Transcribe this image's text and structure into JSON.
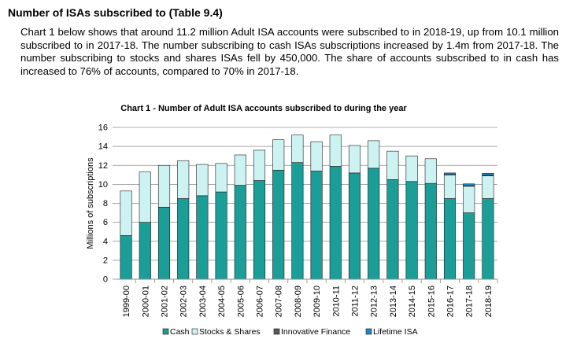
{
  "section": {
    "heading": "Number of ISAs subscribed to (Table 9.4)",
    "paragraph": "Chart 1 below shows that around 11.2 million Adult ISA accounts were subscribed to in 2018-19, up from 10.1 million subscribed to in 2017-18. The number subscribing to cash ISAs subscriptions increased by 1.4m from 2017-18. The number subscribing to stocks and shares ISAs fell by 450,000. The share of accounts subscribed to in cash has increased to 76% of accounts, compared to 70% in 2017-18."
  },
  "chart_data": {
    "type": "bar",
    "stacked": true,
    "title": "Chart 1 - Number of Adult ISA accounts subscribed to during the year",
    "xlabel": "",
    "ylabel": "Millions of subscriptions",
    "ylim": [
      0,
      16
    ],
    "yticks": [
      0,
      2,
      4,
      6,
      8,
      10,
      12,
      14,
      16
    ],
    "grid": true,
    "legend_position": "bottom",
    "categories": [
      "1999-00",
      "2000-01",
      "2001-02",
      "2002-03",
      "2003-04",
      "2004-05",
      "2005-06",
      "2006-07",
      "2007-08",
      "2008-09",
      "2009-10",
      "2010-11",
      "2011-12",
      "2012-13",
      "2013-14",
      "2014-15",
      "2015-16",
      "2016-17",
      "2017-18",
      "2018-19"
    ],
    "series": [
      {
        "name": "Cash",
        "color": "#1a9e97",
        "values": [
          4.6,
          6.0,
          7.6,
          8.5,
          8.8,
          9.2,
          9.9,
          10.4,
          11.5,
          12.3,
          11.4,
          11.9,
          11.2,
          11.7,
          10.5,
          10.3,
          10.1,
          8.5,
          7.0,
          8.5
        ]
      },
      {
        "name": "Stocks & Shares",
        "color": "#ccf3f2",
        "values": [
          4.7,
          5.3,
          4.4,
          4.0,
          3.3,
          3.0,
          3.2,
          3.2,
          3.2,
          2.9,
          3.1,
          3.3,
          2.9,
          2.9,
          3.0,
          2.7,
          2.6,
          2.5,
          2.8,
          2.4
        ]
      },
      {
        "name": "Innovative Finance",
        "color": "#595959",
        "values": [
          0,
          0,
          0,
          0,
          0,
          0,
          0,
          0,
          0,
          0,
          0,
          0,
          0,
          0,
          0,
          0,
          0,
          0.03,
          0.05,
          0.06
        ]
      },
      {
        "name": "Lifetime ISA",
        "color": "#1e88c8",
        "values": [
          0,
          0,
          0,
          0,
          0,
          0,
          0,
          0,
          0,
          0,
          0,
          0,
          0,
          0,
          0,
          0,
          0,
          0.17,
          0.2,
          0.2
        ]
      }
    ]
  }
}
